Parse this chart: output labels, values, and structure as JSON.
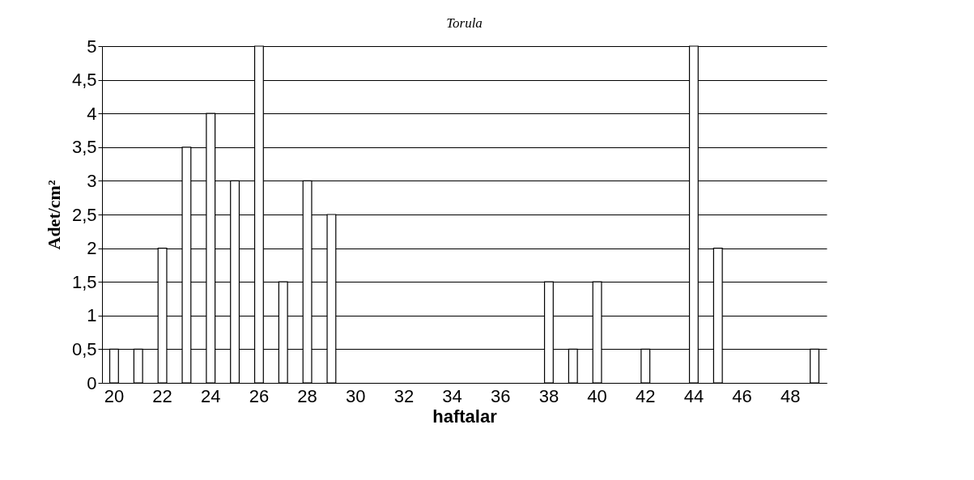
{
  "chart_data": {
    "type": "bar",
    "title": "Torula",
    "xlabel": "haftalar",
    "ylabel": "Adet/cm²",
    "categories": [
      "20",
      null,
      "22",
      null,
      "24",
      null,
      "26",
      null,
      "28",
      null,
      "30",
      null,
      "32",
      null,
      "34",
      null,
      "36",
      null,
      "38",
      null,
      "40",
      null,
      "42",
      null,
      "44",
      null,
      "46",
      null,
      "48",
      null
    ],
    "values": [
      0.5,
      0.5,
      2,
      3.5,
      4,
      3,
      5,
      1.5,
      3,
      2.5,
      0,
      0,
      0,
      0,
      0,
      0,
      0,
      0,
      1.5,
      0.5,
      1.5,
      0,
      0.5,
      0,
      5,
      2,
      0,
      0,
      0,
      0.5
    ],
    "color": "#ffffff",
    "ylim": [
      0,
      5
    ],
    "yticks": [
      0,
      {
        "value": 0.5,
        "label": "0,5"
      },
      1,
      {
        "value": 1.5,
        "label": "1,5"
      },
      2,
      {
        "value": 2.5,
        "label": "2,5"
      },
      3,
      {
        "value": 3.5,
        "label": "3,5"
      },
      4,
      {
        "value": 4.5,
        "label": "4,5"
      },
      5
    ],
    "grid": "y"
  }
}
